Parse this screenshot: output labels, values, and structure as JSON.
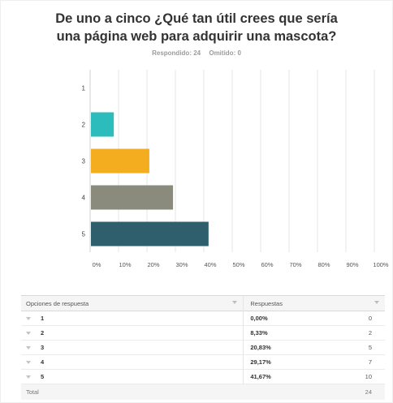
{
  "title_line1": "De uno a cinco ¿Qué tan útil crees que sería",
  "title_line2": "una página web para adquirir una mascota?",
  "stats": {
    "responded": "Respondido: 24",
    "omitted": "Omitido: 0"
  },
  "chart_data": {
    "type": "bar",
    "orientation": "horizontal",
    "categories": [
      "1",
      "2",
      "3",
      "4",
      "5"
    ],
    "values": [
      0,
      8.33,
      20.83,
      29.17,
      41.67
    ],
    "colors": [
      "#2dbcbc",
      "#2dbcbc",
      "#f4ad1f",
      "#8a8b7c",
      "#2f5f6d"
    ],
    "xlim": [
      0,
      100
    ],
    "xticks": [
      "0%",
      "10%",
      "20%",
      "30%",
      "40%",
      "50%",
      "60%",
      "70%",
      "80%",
      "90%",
      "100%"
    ],
    "grid": true
  },
  "table": {
    "headers": [
      "Opciones de respuesta",
      "Respuestas"
    ],
    "rows": [
      {
        "option": "1",
        "percent": "0,00%",
        "count": "0"
      },
      {
        "option": "2",
        "percent": "8,33%",
        "count": "2"
      },
      {
        "option": "3",
        "percent": "20,83%",
        "count": "5"
      },
      {
        "option": "4",
        "percent": "29,17%",
        "count": "7"
      },
      {
        "option": "5",
        "percent": "41,67%",
        "count": "10"
      }
    ],
    "total_label": "Total",
    "total_value": "24"
  }
}
